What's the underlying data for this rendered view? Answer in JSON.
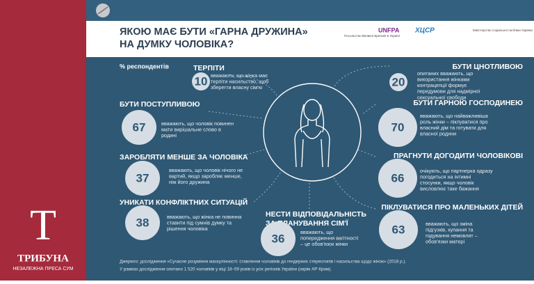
{
  "header": {
    "title_lines": [
      "ЯКОЮ МАЄ БУТИ «ГАРНА ДРУЖИНА»",
      "НА ДУМКУ ЧОЛОВІКА?"
    ],
    "subtitle": "% респондентів",
    "logos": [
      "Посольство Великої Британії в Україні",
      "UNFPA",
      "ХЦСР",
      "Міністерство соціальної політики України"
    ]
  },
  "items": [
    {
      "heading": [
        "ТЕРПІТИ"
      ],
      "value": "10",
      "text": [
        "вважають, що жінка має",
        "терпіти насильство, щоб",
        "зберегти власну сім'ю"
      ]
    },
    {
      "heading": [
        "БУТИ ПОСТУПЛИВОЮ"
      ],
      "value": "67",
      "text": [
        "вважають, що чоловік повинен",
        "мати вирішальне слово в",
        "родині"
      ]
    },
    {
      "heading": [
        "ЗАРОБЛЯТИ МЕНШЕ ЗА ЧОЛОВІКА"
      ],
      "value": "37",
      "text": [
        "вважають, що чоловік нічого не",
        "вартий, якщо заробляє менше,",
        "ніж його дружина"
      ]
    },
    {
      "heading": [
        "УНИКАТИ КОНФЛІКТНИХ СИТУАЦІЙ"
      ],
      "value": "38",
      "text": [
        "вважають, що жінка не повинна",
        "ставити під сумнів думку та",
        "рішення чоловіка"
      ]
    },
    {
      "heading": [
        "НЕСТИ ВІДПОВІДАЛЬНІСТЬ",
        "ЗА ПЛАНУВАННЯ СІМ'Ї"
      ],
      "value": "36",
      "text": [
        "вважають, що",
        "попередження вагітності",
        "– це обов'язок жінки"
      ]
    },
    {
      "heading": [
        "БУТИ ЦНОТЛИВОЮ"
      ],
      "value": "20",
      "text": [
        "опитаних вважають, що",
        "використання жінками",
        "контрацепції формує",
        "передумови для надмірної",
        "сексуальної свободи"
      ]
    },
    {
      "heading": [
        "БУТИ ГАРНОЮ ГОСПОДИНЕЮ"
      ],
      "value": "70",
      "text": [
        "вважають, що найважливіша",
        "роль жінки – піклуватися про",
        "власний дім та готувати для",
        "власної родини"
      ]
    },
    {
      "heading": [
        "ПРАГНУТИ ДОГОДИТИ ЧОЛОВІКОВІ"
      ],
      "value": "66",
      "text": [
        "очікують, що партнерка одразу",
        "погодиться на інтимні",
        "стосунки, якщо чоловік",
        "висловлює таке бажання"
      ]
    },
    {
      "heading": [
        "ПІКЛУВАТИСЯ ПРО МАЛЕНЬКИХ ДІТЕЙ"
      ],
      "value": "63",
      "text": [
        "вважають, що зміна",
        "підгузків, купання та",
        "годування немовлят –",
        "обов'язки матері"
      ]
    }
  ],
  "footer": [
    "Джерело: дослідження «Сучасне розуміння маскулінності: ставлення чоловіків до гендерних стереотипів і насильства щодо жінок» (2018 р.).",
    "У рамках дослідження опитано 1 520 чоловіків у віці 18–59 років із усіх регіонів України (окрім АР Крим)."
  ],
  "sidebar": {
    "logo_letter": "Т",
    "name": "ТРИБУНА",
    "tagline": "НЕЗАЛЕЖНА ПРЕСА СУМ"
  }
}
